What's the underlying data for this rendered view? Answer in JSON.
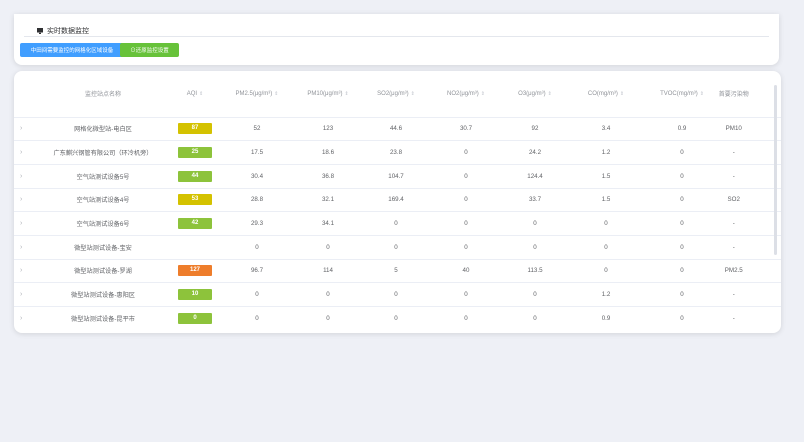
{
  "header": {
    "title": "实时数据监控",
    "select_button": "中田间需要监控的网格化区域设备",
    "restore_button": "⊙还原监控设置"
  },
  "table": {
    "columns": [
      "监控站点名称",
      "AQI",
      "PM2.5(μg/m³)",
      "PM10(μg/m³)",
      "SO2(μg/m³)",
      "NO2(μg/m³)",
      "O3(μg/m³)",
      "CO(mg/m³)",
      "TVOC(mg/m³)",
      "首要污染物"
    ],
    "rows": [
      {
        "name": "网格化微型站-电白区",
        "aqi": "87",
        "aqi_color": "#d4c200",
        "pm25": "52",
        "pm10": "123",
        "so2": "44.6",
        "no2": "30.7",
        "o3": "92",
        "co": "3.4",
        "tvoc": "0.9",
        "primary": "PM10"
      },
      {
        "name": "广东麒兴钢管有限公司（环冷机旁）",
        "aqi": "25",
        "aqi_color": "#8dc33b",
        "pm25": "17.5",
        "pm10": "18.6",
        "so2": "23.8",
        "no2": "0",
        "o3": "24.2",
        "co": "1.2",
        "tvoc": "0",
        "primary": "-"
      },
      {
        "name": "空气站测试设备5号",
        "aqi": "44",
        "aqi_color": "#8dc33b",
        "pm25": "30.4",
        "pm10": "36.8",
        "so2": "104.7",
        "no2": "0",
        "o3": "124.4",
        "co": "1.5",
        "tvoc": "0",
        "primary": "-"
      },
      {
        "name": "空气站测试设备4号",
        "aqi": "53",
        "aqi_color": "#d4c200",
        "pm25": "28.8",
        "pm10": "32.1",
        "so2": "169.4",
        "no2": "0",
        "o3": "33.7",
        "co": "1.5",
        "tvoc": "0",
        "primary": "SO2"
      },
      {
        "name": "空气站测试设备6号",
        "aqi": "42",
        "aqi_color": "#8dc33b",
        "pm25": "29.3",
        "pm10": "34.1",
        "so2": "0",
        "no2": "0",
        "o3": "0",
        "co": "0",
        "tvoc": "0",
        "primary": "-"
      },
      {
        "name": "微型站测试设备-宝安",
        "aqi": "",
        "aqi_color": "",
        "pm25": "0",
        "pm10": "0",
        "so2": "0",
        "no2": "0",
        "o3": "0",
        "co": "0",
        "tvoc": "0",
        "primary": "-"
      },
      {
        "name": "微型站测试设备-罗湖",
        "aqi": "127",
        "aqi_color": "#ee7d2b",
        "pm25": "96.7",
        "pm10": "114",
        "so2": "5",
        "no2": "40",
        "o3": "113.5",
        "co": "0",
        "tvoc": "0",
        "primary": "PM2.5"
      },
      {
        "name": "微型站测试设备-惠阳区",
        "aqi": "10",
        "aqi_color": "#8dc33b",
        "pm25": "0",
        "pm10": "0",
        "so2": "0",
        "no2": "0",
        "o3": "0",
        "co": "1.2",
        "tvoc": "0",
        "primary": "-"
      },
      {
        "name": "微型站测试设备-昆平市",
        "aqi": "0",
        "aqi_color": "#8dc33b",
        "pm25": "0",
        "pm10": "0",
        "so2": "0",
        "no2": "0",
        "o3": "0",
        "co": "0.9",
        "tvoc": "0",
        "primary": "-"
      }
    ]
  }
}
